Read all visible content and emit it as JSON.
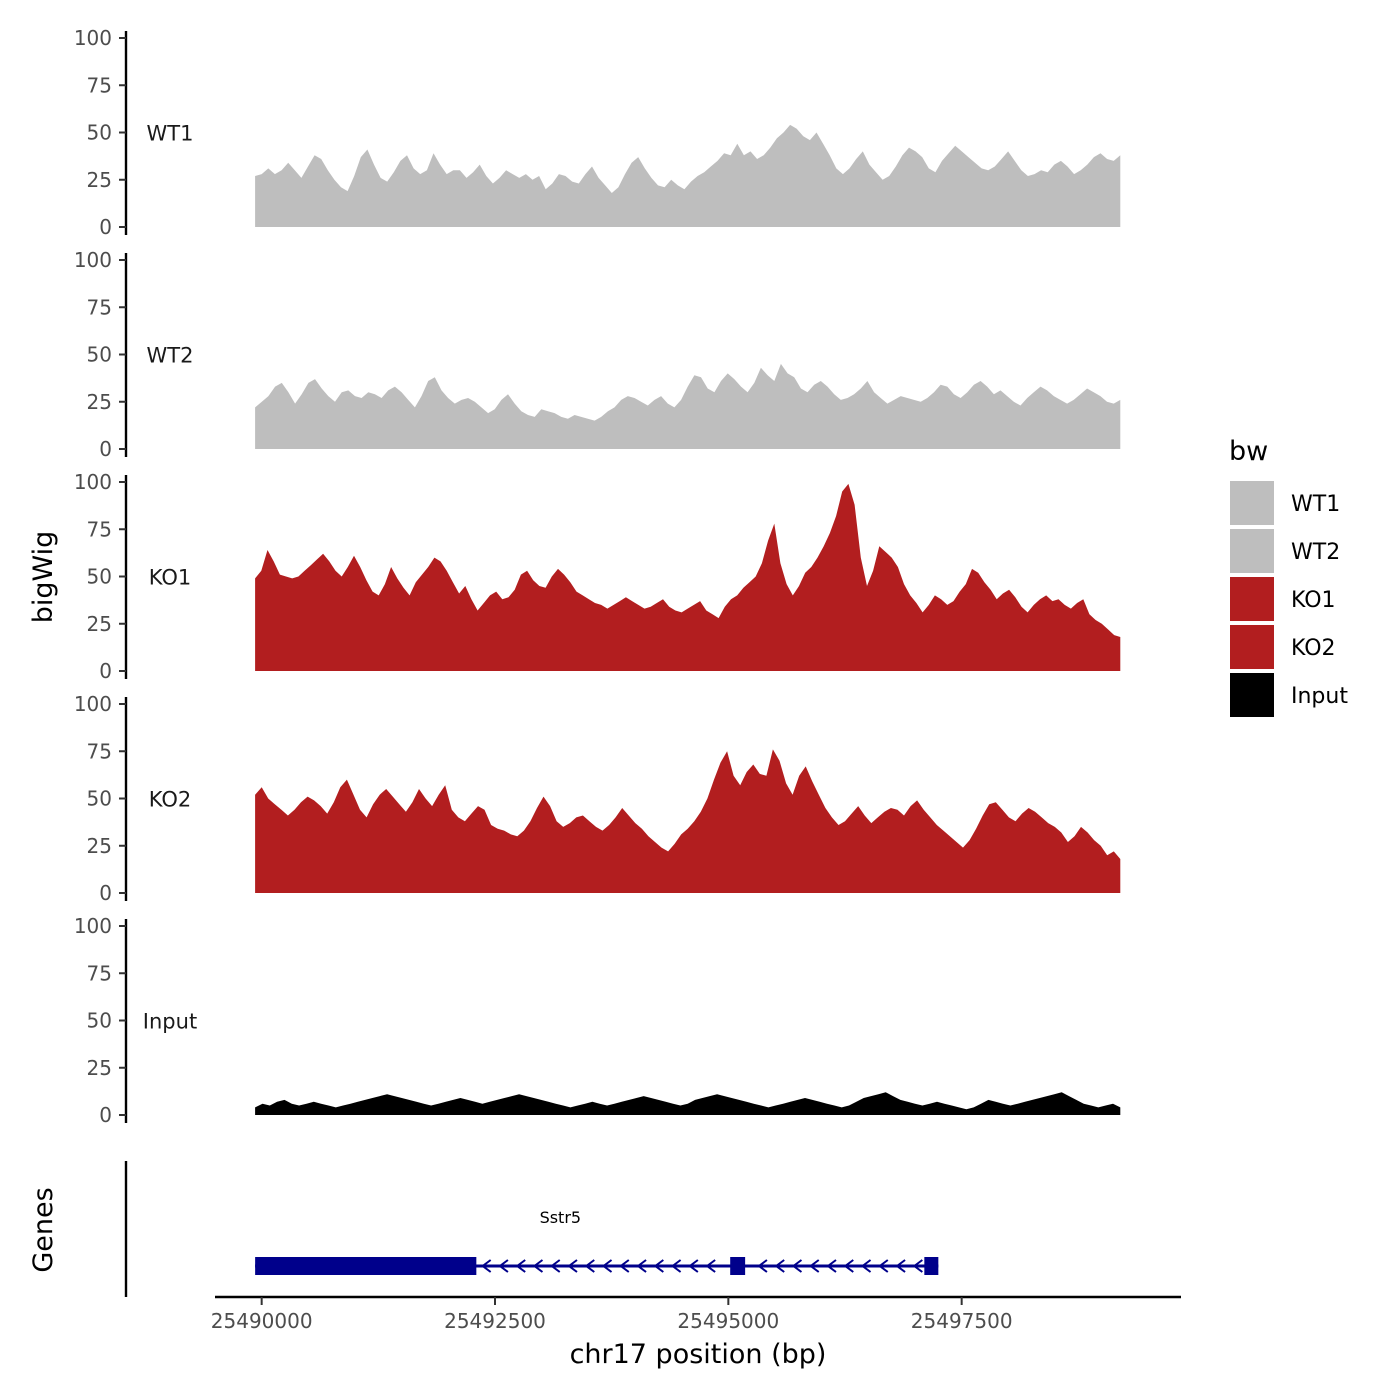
{
  "chart_data": {
    "type": "area",
    "ylabel": "bigWig",
    "xlabel": "chr17 position (bp)",
    "genes_label": "Genes",
    "ylim": [
      0,
      100
    ],
    "y_ticks": [
      "0",
      "25",
      "50",
      "75",
      "100"
    ],
    "x_ticks": [
      {
        "value": 25490000,
        "label": "25490000"
      },
      {
        "value": 25492500,
        "label": "25492500"
      },
      {
        "value": 25495000,
        "label": "25495000"
      },
      {
        "value": 25497500,
        "label": "25497500"
      }
    ],
    "xlim": [
      25489500,
      25499850
    ],
    "data_xrange": [
      25489930,
      25499200
    ],
    "legend": {
      "title": "bw",
      "items": [
        {
          "label": "WT1",
          "color": "#bebebe"
        },
        {
          "label": "WT2",
          "color": "#bebebe"
        },
        {
          "label": "KO1",
          "color": "#b21e1f"
        },
        {
          "label": "KO2",
          "color": "#b21e1f"
        },
        {
          "label": "Input",
          "color": "#000000"
        }
      ]
    },
    "series": [
      {
        "name": "WT1",
        "color": "#bebebe",
        "values": [
          27,
          28,
          31,
          28,
          30,
          34,
          30,
          26,
          32,
          38,
          36,
          30,
          25,
          21,
          19,
          27,
          37,
          41,
          33,
          26,
          24,
          29,
          35,
          38,
          31,
          28,
          30,
          39,
          33,
          28,
          30,
          30,
          26,
          29,
          33,
          27,
          23,
          26,
          30,
          28,
          26,
          28,
          25,
          27,
          20,
          23,
          28,
          27,
          24,
          23,
          28,
          32,
          26,
          22,
          18,
          21,
          28,
          34,
          37,
          31,
          26,
          22,
          21,
          25,
          22,
          20,
          24,
          27,
          29,
          32,
          35,
          39,
          38,
          44,
          38,
          40,
          36,
          38,
          42,
          47,
          50,
          54,
          52,
          48,
          46,
          50,
          44,
          38,
          31,
          28,
          31,
          36,
          40,
          33,
          29,
          25,
          27,
          32,
          38,
          42,
          40,
          37,
          31,
          29,
          35,
          39,
          43,
          40,
          37,
          34,
          31,
          30,
          32,
          36,
          40,
          35,
          30,
          27,
          28,
          30,
          29,
          33,
          35,
          32,
          28,
          30,
          33,
          37,
          39,
          36,
          35,
          38
        ]
      },
      {
        "name": "WT2",
        "color": "#bebebe",
        "values": [
          22,
          25,
          28,
          33,
          35,
          30,
          24,
          29,
          35,
          37,
          32,
          28,
          25,
          30,
          31,
          28,
          27,
          30,
          29,
          27,
          31,
          33,
          30,
          26,
          22,
          28,
          36,
          38,
          31,
          27,
          24,
          26,
          27,
          25,
          22,
          19,
          21,
          26,
          29,
          24,
          20,
          18,
          17,
          21,
          20,
          19,
          17,
          16,
          18,
          17,
          16,
          15,
          17,
          20,
          22,
          26,
          28,
          27,
          25,
          23,
          26,
          28,
          24,
          22,
          26,
          33,
          39,
          38,
          32,
          30,
          36,
          40,
          37,
          33,
          30,
          35,
          43,
          39,
          36,
          45,
          40,
          38,
          32,
          30,
          34,
          36,
          33,
          29,
          26,
          27,
          29,
          32,
          36,
          30,
          27,
          24,
          26,
          28,
          27,
          26,
          25,
          27,
          30,
          34,
          33,
          29,
          27,
          30,
          34,
          36,
          33,
          29,
          31,
          28,
          25,
          23,
          27,
          30,
          33,
          31,
          28,
          26,
          24,
          26,
          29,
          32,
          30,
          28,
          25,
          24,
          26
        ]
      },
      {
        "name": "KO1",
        "color": "#b21e1f",
        "values": [
          49,
          53,
          64,
          58,
          51,
          50,
          49,
          50,
          53,
          56,
          59,
          62,
          58,
          53,
          50,
          55,
          61,
          55,
          48,
          42,
          40,
          46,
          55,
          49,
          44,
          40,
          47,
          51,
          55,
          60,
          58,
          53,
          47,
          41,
          45,
          38,
          32,
          36,
          40,
          42,
          38,
          39,
          43,
          51,
          53,
          48,
          45,
          44,
          50,
          54,
          51,
          47,
          42,
          40,
          38,
          36,
          35,
          33,
          35,
          37,
          39,
          37,
          35,
          33,
          34,
          36,
          38,
          34,
          32,
          31,
          33,
          35,
          37,
          32,
          30,
          28,
          34,
          38,
          40,
          44,
          47,
          50,
          57,
          69,
          78,
          57,
          46,
          40,
          45,
          52,
          55,
          60,
          66,
          73,
          82,
          95,
          99,
          88,
          60,
          45,
          53,
          66,
          63,
          60,
          55,
          46,
          40,
          36,
          31,
          35,
          40,
          38,
          35,
          37,
          42,
          46,
          54,
          52,
          47,
          43,
          38,
          41,
          43,
          39,
          34,
          31,
          35,
          38,
          40,
          37,
          38,
          35,
          33,
          36,
          38,
          30,
          27,
          25,
          22,
          19,
          18
        ]
      },
      {
        "name": "KO2",
        "color": "#b21e1f",
        "values": [
          52,
          56,
          50,
          47,
          44,
          41,
          44,
          48,
          51,
          49,
          46,
          42,
          48,
          56,
          60,
          52,
          44,
          40,
          47,
          52,
          55,
          51,
          47,
          43,
          48,
          55,
          50,
          46,
          52,
          57,
          44,
          40,
          38,
          42,
          46,
          44,
          36,
          34,
          33,
          31,
          30,
          33,
          38,
          45,
          51,
          46,
          38,
          35,
          37,
          40,
          41,
          38,
          35,
          33,
          36,
          40,
          45,
          41,
          37,
          34,
          30,
          27,
          24,
          22,
          26,
          31,
          34,
          38,
          43,
          50,
          60,
          69,
          75,
          62,
          57,
          64,
          68,
          63,
          62,
          76,
          70,
          58,
          52,
          62,
          67,
          59,
          52,
          45,
          40,
          36,
          38,
          42,
          46,
          41,
          37,
          40,
          43,
          45,
          44,
          41,
          46,
          49,
          44,
          40,
          36,
          33,
          30,
          27,
          24,
          28,
          34,
          41,
          47,
          48,
          44,
          40,
          38,
          42,
          45,
          43,
          40,
          37,
          35,
          32,
          27,
          30,
          35,
          32,
          28,
          25,
          20,
          22,
          18
        ]
      },
      {
        "name": "Input",
        "color": "#000000",
        "values": [
          4,
          6,
          5,
          7,
          8,
          6,
          5,
          6,
          7,
          6,
          5,
          4,
          5,
          6,
          7,
          8,
          9,
          10,
          11,
          10,
          9,
          8,
          7,
          6,
          5,
          6,
          7,
          8,
          9,
          8,
          7,
          6,
          7,
          8,
          9,
          10,
          11,
          10,
          9,
          8,
          7,
          6,
          5,
          4,
          5,
          6,
          7,
          6,
          5,
          6,
          7,
          8,
          9,
          10,
          9,
          8,
          7,
          6,
          5,
          6,
          8,
          9,
          10,
          11,
          10,
          9,
          8,
          7,
          6,
          5,
          4,
          5,
          6,
          7,
          8,
          9,
          8,
          7,
          6,
          5,
          4,
          5,
          7,
          9,
          10,
          11,
          12,
          10,
          8,
          7,
          6,
          5,
          6,
          7,
          6,
          5,
          4,
          3,
          4,
          6,
          8,
          7,
          6,
          5,
          6,
          7,
          8,
          9,
          10,
          11,
          12,
          10,
          8,
          6,
          5,
          4,
          5,
          6,
          4
        ]
      }
    ],
    "gene": {
      "name": "Sstr5",
      "start": 25489930,
      "end": 25497250,
      "strand": "-",
      "exons": [
        [
          25489930,
          25492300
        ],
        [
          25495020,
          25495180
        ],
        [
          25497100,
          25497250
        ]
      ],
      "color": "#00008b"
    }
  }
}
